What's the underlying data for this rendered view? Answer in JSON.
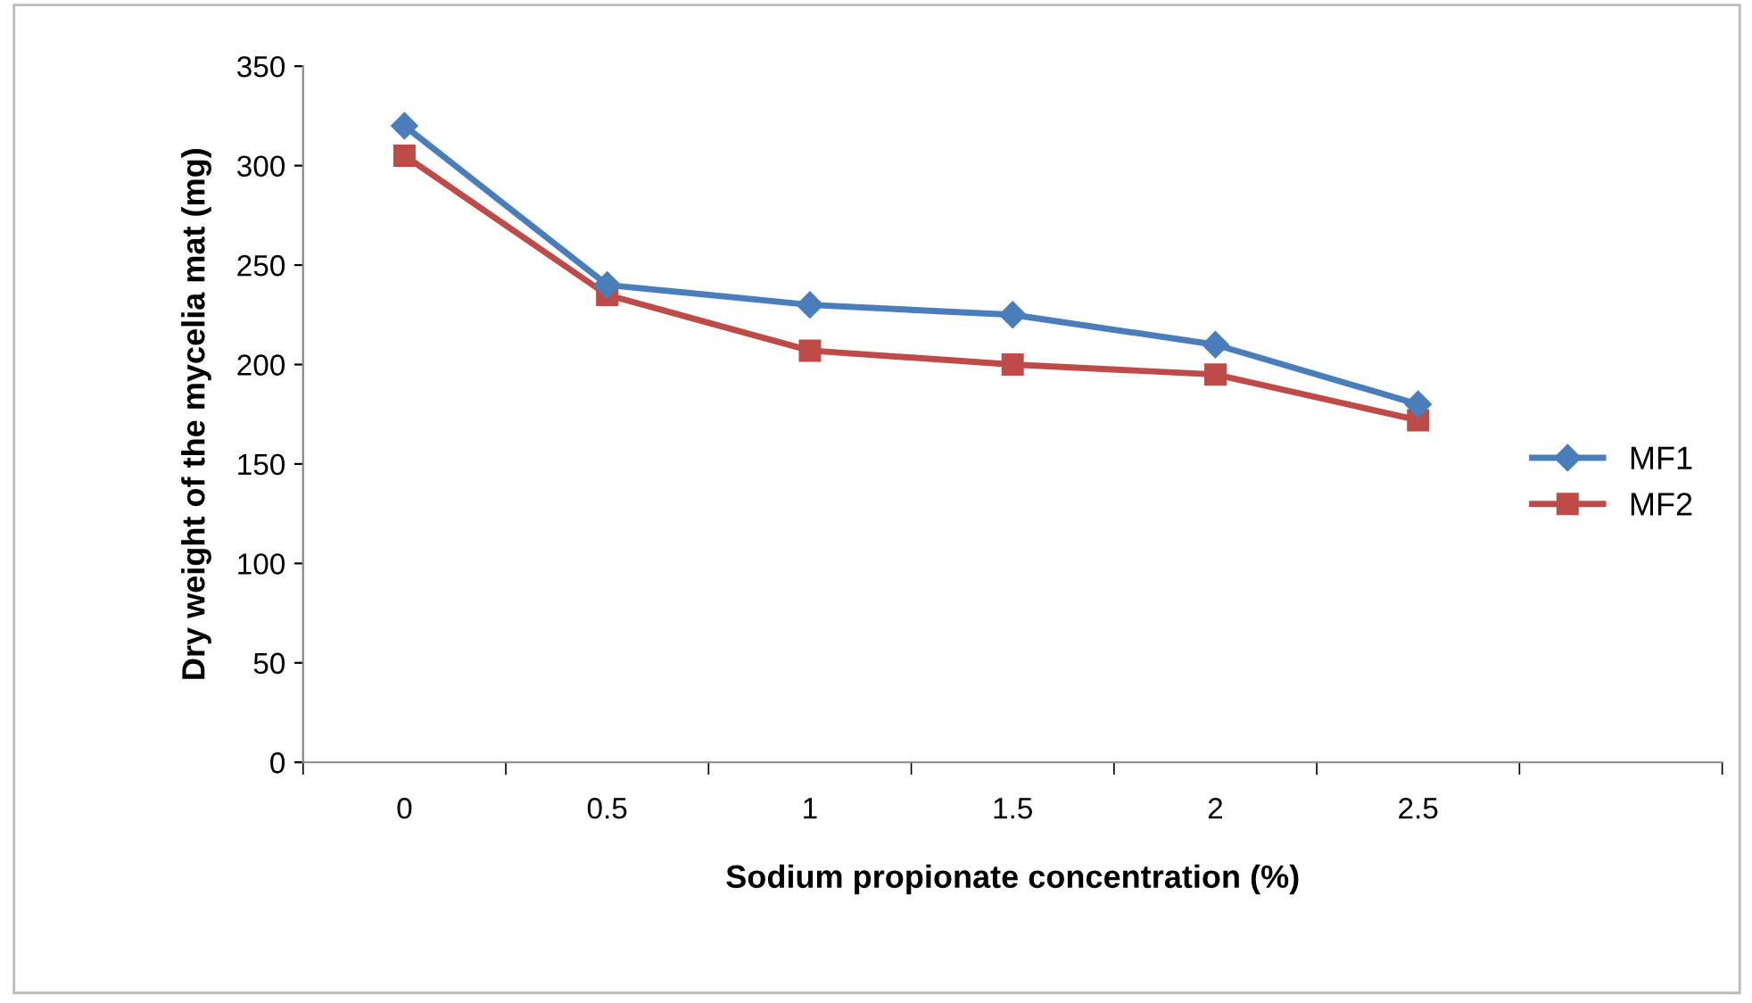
{
  "chart_data": {
    "type": "line",
    "xlabel": "Sodium propionate concentration (%)",
    "ylabel": "Dry weight of the mycelia mat (mg)",
    "categories": [
      "0",
      "0.5",
      "1",
      "1.5",
      "2",
      "2.5",
      null
    ],
    "series": [
      {
        "name": "MF1",
        "color": "#4a7ebb",
        "marker": "diamond",
        "values": [
          320,
          240,
          230,
          225,
          210,
          180,
          null
        ]
      },
      {
        "name": "MF2",
        "color": "#be4b48",
        "marker": "square",
        "values": [
          305,
          235,
          207,
          200,
          195,
          172,
          null
        ]
      }
    ],
    "ylim": [
      0,
      350
    ],
    "yticks": [
      0,
      50,
      100,
      150,
      200,
      250,
      300,
      350
    ],
    "grid": false,
    "legend": "right",
    "line_style": "solid"
  }
}
